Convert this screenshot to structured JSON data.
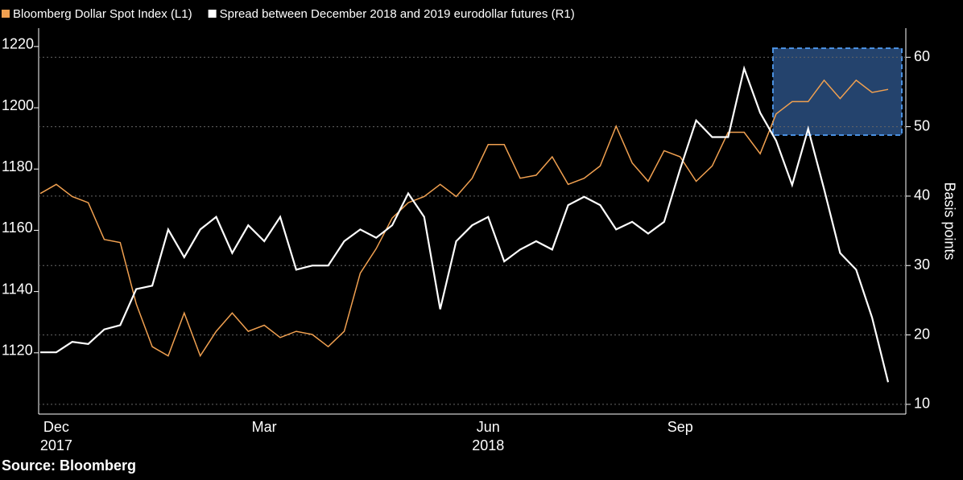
{
  "chart_data": {
    "type": "line",
    "categories": [
      null,
      "Dec",
      null,
      null,
      null,
      null,
      null,
      null,
      null,
      null,
      null,
      null,
      null,
      null,
      "Mar",
      null,
      null,
      null,
      null,
      null,
      null,
      null,
      null,
      null,
      null,
      null,
      null,
      null,
      "Jun",
      null,
      null,
      null,
      null,
      null,
      null,
      null,
      null,
      null,
      null,
      null,
      "Sep",
      null,
      null,
      null,
      null,
      null,
      null,
      null,
      null,
      null,
      null,
      null,
      null,
      null
    ],
    "years": [
      null,
      "2017",
      null,
      null,
      null,
      null,
      null,
      null,
      null,
      null,
      null,
      null,
      null,
      null,
      null,
      null,
      null,
      null,
      null,
      null,
      null,
      null,
      null,
      null,
      null,
      null,
      null,
      null,
      "2018",
      null,
      null,
      null,
      null,
      null,
      null,
      null,
      null,
      null,
      null,
      null,
      null,
      null,
      null,
      null,
      null,
      null,
      null,
      null,
      null,
      null,
      null,
      null,
      null,
      null
    ],
    "series": [
      {
        "name": "Bloomberg Dollar Spot Index (L1)",
        "color": "#f0a050",
        "values": [
          1172,
          1175,
          1171,
          1169,
          1157,
          1156,
          1136,
          1122,
          1119,
          1133,
          1119,
          1127,
          1133,
          1127,
          1129,
          1125,
          1127,
          1126,
          1122,
          1127,
          1146,
          1154,
          1164,
          1169,
          1171,
          1175,
          1171,
          1177,
          1188,
          1188,
          1177,
          1178,
          1184,
          1175,
          1177,
          1181,
          1194,
          1182,
          1176,
          1186,
          1184,
          1176,
          1181,
          1192,
          1192,
          1185,
          1198,
          1202,
          1202,
          1209,
          1203,
          1209,
          1205,
          1206
        ]
      },
      {
        "name": "Spread between December 2018 and 2019 eurodollar futures (R1)",
        "color": "#ffffff",
        "axis": "y2",
        "values": [
          17.5,
          17.5,
          19,
          18.7,
          20.8,
          21.4,
          26.6,
          27.1,
          35.2,
          31.2,
          35.2,
          37,
          31.8,
          35.8,
          33.5,
          37,
          29.4,
          30,
          30,
          33.5,
          35.2,
          34,
          35.8,
          40.4,
          37,
          23.7,
          33.5,
          35.8,
          37,
          30.6,
          32.3,
          33.5,
          32.3,
          38.7,
          39.9,
          38.7,
          35.2,
          36.3,
          34.6,
          36.3,
          43.9,
          50.9,
          48.5,
          48.5,
          58.4,
          52,
          48,
          41.6,
          49.7,
          41,
          31.8,
          29.4,
          22.5,
          13.2
        ]
      }
    ],
    "ylim": [
      1100,
      1226
    ],
    "yticks": [
      1120,
      1140,
      1160,
      1180,
      1200,
      1220
    ],
    "y2lim": [
      8.6,
      64.2
    ],
    "y2ticks": [
      10,
      20,
      30,
      40,
      50,
      60
    ],
    "y2label": "Basis points",
    "grid": true,
    "source": "Source: Bloomberg"
  }
}
